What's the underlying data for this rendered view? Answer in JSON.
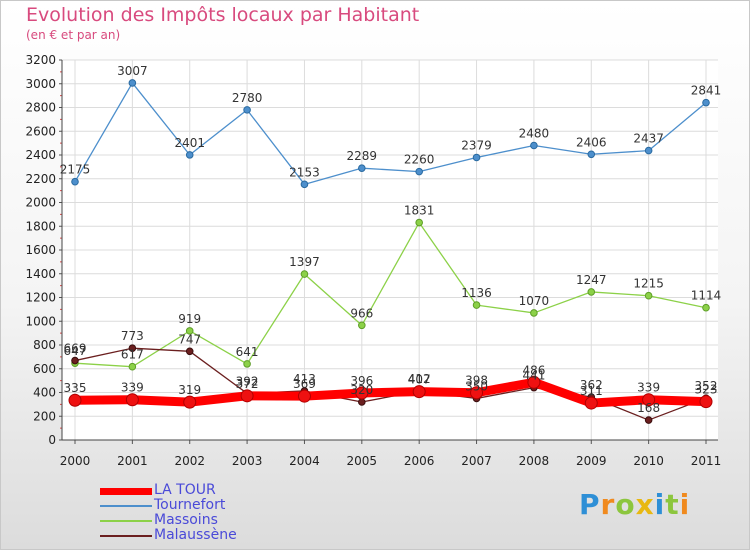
{
  "colors": {
    "title": "#d84a7e",
    "legend_text": "#4a4ad8"
  },
  "chart_data": {
    "type": "line",
    "title": "Evolution des Impôts locaux par Habitant",
    "subtitle": "(en € et par an)",
    "xlabel": "",
    "ylabel": "",
    "x": [
      "2000",
      "2001",
      "2002",
      "2003",
      "2004",
      "2005",
      "2006",
      "2007",
      "2008",
      "2009",
      "2010",
      "2011"
    ],
    "ylim": [
      0,
      3200
    ],
    "yticks": [
      0,
      200,
      400,
      600,
      800,
      1000,
      1200,
      1400,
      1600,
      1800,
      2000,
      2200,
      2400,
      2600,
      2800,
      3000,
      3200
    ],
    "grid": true,
    "legend_position": "bottom-left",
    "series": [
      {
        "name": "LA TOUR",
        "color": "#ff0000",
        "values": [
          335,
          339,
          319,
          372,
          369,
          396,
          407,
          398,
          486,
          311,
          339,
          323
        ],
        "labels": [
          "335",
          "339",
          "319",
          "372",
          "369",
          "396",
          "407",
          "398",
          "486",
          "311",
          "339",
          "323"
        ]
      },
      {
        "name": "Tournefort",
        "color": "#4d8fcc",
        "values": [
          2175,
          3007,
          2401,
          2780,
          2153,
          2289,
          2260,
          2379,
          2480,
          2406,
          2437,
          2841
        ],
        "labels": [
          "2175",
          "3007",
          "2401",
          "2780",
          "2153",
          "2289",
          "2260",
          "2379",
          "2480",
          "2406",
          "2437",
          "2841"
        ]
      },
      {
        "name": "Massoins",
        "color": "#8cd148",
        "values": [
          647,
          617,
          919,
          641,
          1397,
          966,
          1831,
          1136,
          1070,
          1247,
          1215,
          1114
        ],
        "labels": [
          "647",
          "617",
          "919",
          "641",
          "1397",
          "966",
          "1831",
          "1136",
          "1070",
          "1247",
          "1215",
          "1114"
        ]
      },
      {
        "name": "Malaussène",
        "color": "#6b1f1f",
        "values": [
          669,
          773,
          747,
          392,
          413,
          320,
          412,
          350,
          441,
          362,
          168,
          352
        ],
        "labels": [
          "669",
          "773",
          "747",
          "392",
          "413",
          "320",
          "412",
          "350",
          "441",
          "362",
          "168",
          "352"
        ]
      }
    ]
  },
  "brand": {
    "letters": [
      "P",
      "r",
      "o",
      "x",
      "i",
      "t",
      "i"
    ],
    "colors": [
      "#2e8fd6",
      "#f08a1e",
      "#8cc63e",
      "#e8b812",
      "#2e8fd6",
      "#8cc63e",
      "#f08a1e"
    ]
  }
}
